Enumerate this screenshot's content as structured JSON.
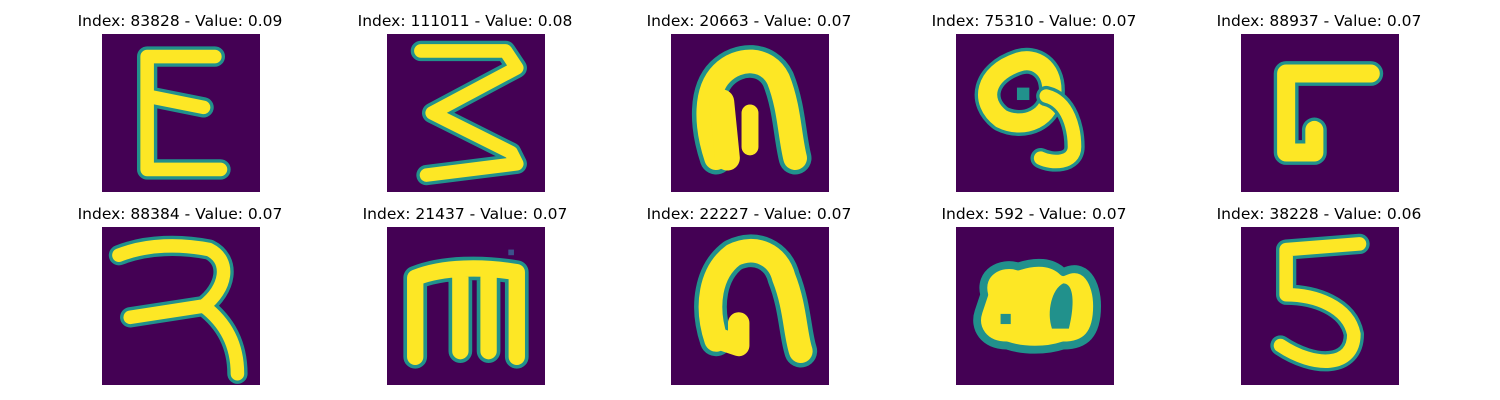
{
  "colors": {
    "background": "#440154",
    "foreground": "#fde725",
    "edge": "#21918c",
    "edge_dark": "#3b528b",
    "edge_light": "#5ec962"
  },
  "cells": [
    {
      "title": "Index: 83828 - Value: 0.09",
      "glyph_icon": "epsilon-glyph-icon"
    },
    {
      "title": "Index: 111011 - Value: 0.08",
      "glyph_icon": "zigzag-three-glyph-icon"
    },
    {
      "title": "Index: 20663 - Value: 0.07",
      "glyph_icon": "arch-glyph-icon"
    },
    {
      "title": "Index: 75310 - Value: 0.07",
      "glyph_icon": "loop-tail-glyph-icon"
    },
    {
      "title": "Index: 88937 - Value: 0.07",
      "glyph_icon": "bracket-glyph-icon"
    },
    {
      "title": "Index: 88384 - Value: 0.07",
      "glyph_icon": "hook-glyph-icon"
    },
    {
      "title": "Index: 21437 - Value: 0.07",
      "glyph_icon": "m-glyph-icon"
    },
    {
      "title": "Index: 22227 - Value: 0.07",
      "glyph_icon": "arch-glyph-icon"
    },
    {
      "title": "Index: 592 - Value: 0.07",
      "glyph_icon": "double-loop-glyph-icon"
    },
    {
      "title": "Index: 38228 - Value: 0.06",
      "glyph_icon": "five-glyph-icon"
    }
  ]
}
